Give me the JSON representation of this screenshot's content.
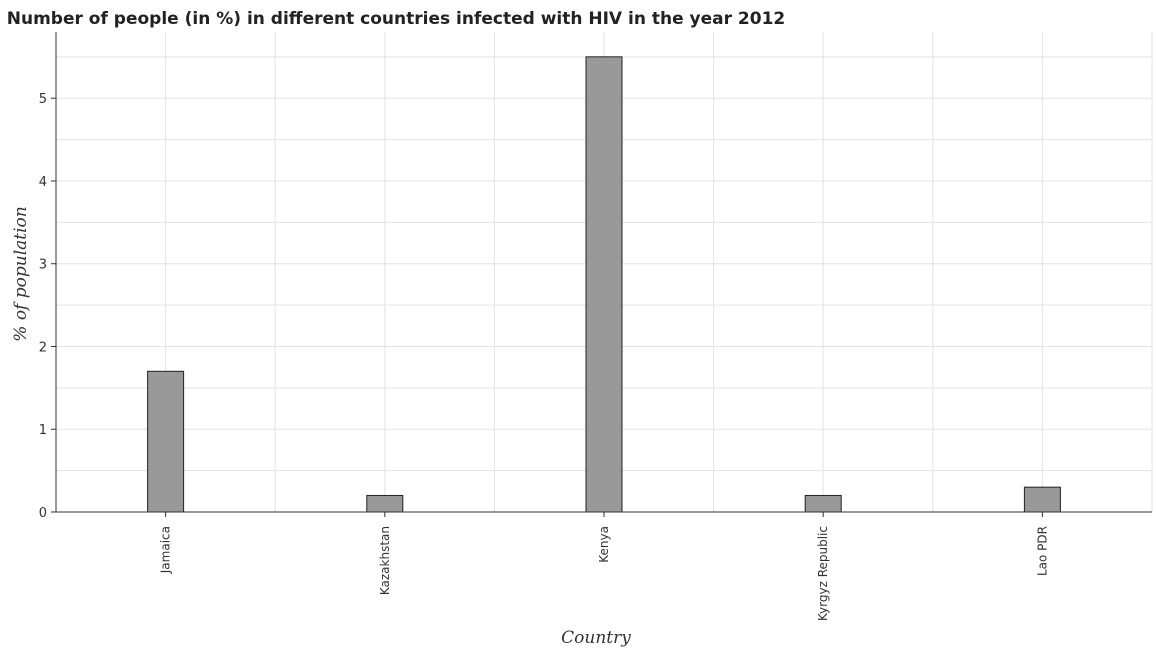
{
  "chart_data": {
    "type": "bar",
    "title": "Number of people (in %) in different countries infected with HIV in the year 2012",
    "xlabel": "Country",
    "ylabel": "% of population",
    "categories": [
      "Jamaica",
      "Kazakhstan",
      "Kenya",
      "Kyrgyz Republic",
      "Lao PDR"
    ],
    "values": [
      1.7,
      0.2,
      5.5,
      0.2,
      0.3
    ],
    "ylim": [
      0,
      5.8
    ],
    "yticks": [
      0,
      1,
      2,
      3,
      4,
      5
    ],
    "grid": true,
    "bar_color": "#999999"
  }
}
